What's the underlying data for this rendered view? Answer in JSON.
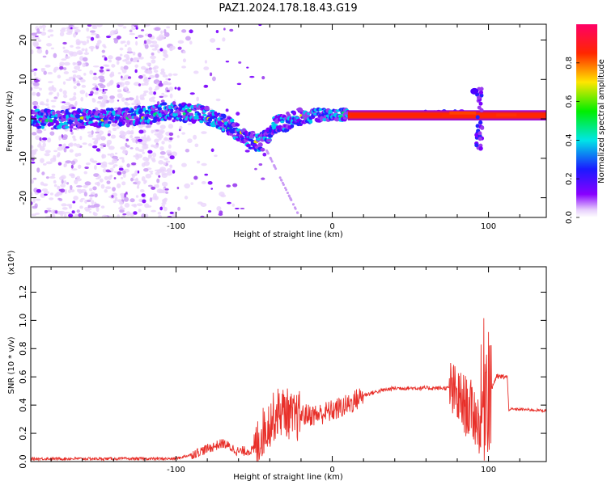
{
  "title": "PAZ1.2024.178.18.43.G19",
  "chart_data": [
    {
      "type": "heatmap",
      "xlabel": "Height of straight line (km)",
      "ylabel": "Frequency (Hz)",
      "xlim": [
        -193,
        137
      ],
      "ylim": [
        -25,
        24
      ],
      "xticks": [
        -100,
        0,
        100
      ],
      "yticks": [
        -20,
        -10,
        0,
        10,
        20
      ],
      "colorbar": {
        "label": "Normalized spectral amplitude",
        "range": [
          0.0,
          1.0
        ],
        "ticks": [
          "0.0",
          "0.2",
          "0.4",
          "0.6",
          "0.8"
        ]
      },
      "trace": {
        "x": [
          -193,
          -150,
          -120,
          -100,
          -80,
          -65,
          -55,
          -45,
          -38,
          -25,
          -10,
          0,
          10,
          40,
          85,
          95,
          110,
          137
        ],
        "y": [
          0,
          0,
          1,
          2,
          1,
          -2,
          -5,
          -6,
          -2,
          0,
          1,
          1,
          1,
          1,
          1.5,
          1,
          1,
          1
        ]
      }
    },
    {
      "type": "line",
      "xlabel": "Height of straight line (km)",
      "ylabel": "SNR (10 * v/v)",
      "y_scale_label": "(x10⁴)",
      "xlim": [
        -193,
        137
      ],
      "ylim": [
        0,
        1.38
      ],
      "xticks": [
        -100,
        0,
        100
      ],
      "yticks": [
        "0.0",
        "0.2",
        "0.4",
        "0.6",
        "0.8",
        "1.0",
        "1.2"
      ],
      "series": [
        {
          "color": "#e8302a",
          "x": [
            -193,
            -150,
            -100,
            -90,
            -80,
            -70,
            -60,
            -50,
            -45,
            -40,
            -35,
            -30,
            -25,
            -20,
            -10,
            0,
            10,
            20,
            30,
            40,
            60,
            75,
            80,
            85,
            90,
            95,
            98,
            100,
            102,
            105,
            110,
            112,
            113,
            120,
            137
          ],
          "y": [
            0.02,
            0.02,
            0.02,
            0.05,
            0.09,
            0.13,
            0.07,
            0.08,
            0.2,
            0.28,
            0.35,
            0.36,
            0.3,
            0.33,
            0.33,
            0.36,
            0.4,
            0.47,
            0.5,
            0.52,
            0.52,
            0.52,
            0.45,
            0.4,
            0.35,
            0.25,
            0.6,
            0.6,
            0.52,
            0.6,
            0.6,
            0.6,
            0.37,
            0.37,
            0.36
          ]
        }
      ]
    }
  ]
}
